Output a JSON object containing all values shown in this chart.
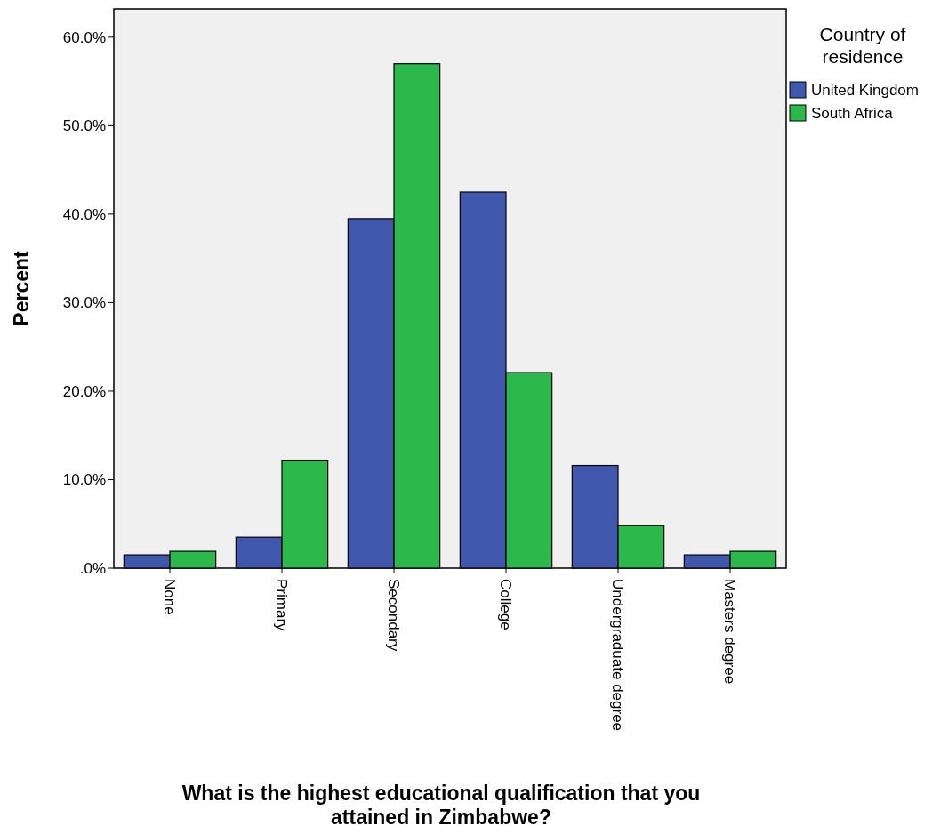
{
  "chart_data": {
    "type": "bar",
    "xlabel": "What is the highest educational qualification that you attained in Zimbabwe?",
    "ylabel": "Percent",
    "legend_title": "Country of residence",
    "legend": "right",
    "categories": [
      "None",
      "Primary",
      "Secondary",
      "College",
      "Undergraduate degree",
      "Masters degree"
    ],
    "series": [
      {
        "name": "United Kingdom",
        "color": "#3f58ad",
        "values": [
          1.5,
          3.5,
          39.5,
          42.5,
          11.6,
          1.5
        ]
      },
      {
        "name": "South Africa",
        "color": "#2db84b",
        "values": [
          1.9,
          12.2,
          57.0,
          22.1,
          4.8,
          1.9
        ]
      }
    ],
    "ylim": [
      0,
      63.2
    ],
    "yticks": [
      {
        "value": 0,
        "label": ".0%"
      },
      {
        "value": 10,
        "label": "10.0%"
      },
      {
        "value": 20,
        "label": "20.0%"
      },
      {
        "value": 30,
        "label": "30.0%"
      },
      {
        "value": 40,
        "label": "40.0%"
      },
      {
        "value": 50,
        "label": "50.0%"
      },
      {
        "value": 60,
        "label": "60.0%"
      }
    ]
  }
}
